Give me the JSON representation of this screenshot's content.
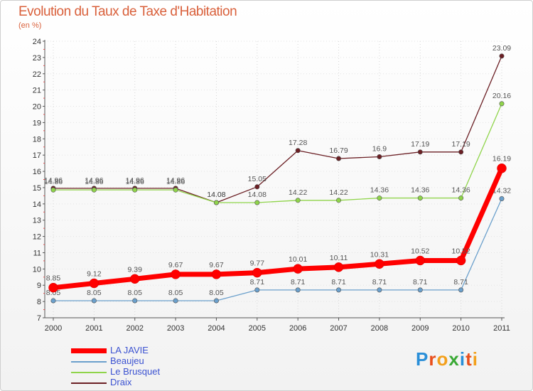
{
  "title": "Evolution du Taux de Taxe d'Habitation",
  "subtitle": "(en %)",
  "logo": {
    "text": "Proxiti",
    "letters": [
      "P",
      "r",
      "o",
      "x",
      "i",
      "t",
      "i"
    ],
    "colors": [
      "#2a8fd8",
      "#e94e1b",
      "#f3a01b",
      "#3aa935",
      "#2a8fd8",
      "#e94e1b",
      "#f3a01b"
    ]
  },
  "chart_data": {
    "type": "line",
    "title": "Evolution du Taux de Taxe d'Habitation",
    "ylabel": "(en %)",
    "x": [
      "2000",
      "2001",
      "2002",
      "2003",
      "2004",
      "2005",
      "2006",
      "2007",
      "2008",
      "2009",
      "2010",
      "2011"
    ],
    "ylim": [
      7,
      24
    ],
    "yticks": [
      7,
      8,
      9,
      10,
      11,
      12,
      13,
      14,
      15,
      16,
      17,
      18,
      19,
      20,
      21,
      22,
      23,
      24
    ],
    "grid": true,
    "legend_position": "bottom-left",
    "series": [
      {
        "name": "Draix",
        "color": "#6b1f24",
        "values": [
          14.96,
          14.96,
          14.96,
          14.96,
          14.08,
          15.05,
          17.28,
          16.79,
          16.9,
          17.19,
          17.19,
          23.09
        ],
        "labels": [
          "14.96",
          "14.96",
          "14.96",
          "14.96",
          "14.08",
          "15.05",
          "17.28",
          "16.79",
          "16.9",
          "17.19",
          "17.19",
          "23.09"
        ]
      },
      {
        "name": "Le Brusquet",
        "color": "#8fd44a",
        "values": [
          14.86,
          14.86,
          14.86,
          14.86,
          14.08,
          14.08,
          14.22,
          14.22,
          14.36,
          14.36,
          14.36,
          20.16
        ],
        "labels": [
          "14.86",
          "14.86",
          "14.86",
          "14.86",
          "14.08",
          "14.08",
          "14.22",
          "14.22",
          "14.36",
          "14.36",
          "14.36",
          "20.16"
        ]
      },
      {
        "name": "Beaujeu",
        "color": "#6ba0cc",
        "values": [
          8.05,
          8.05,
          8.05,
          8.05,
          8.05,
          8.71,
          8.71,
          8.71,
          8.71,
          8.71,
          8.71,
          14.32
        ],
        "labels": [
          "8.05",
          "8.05",
          "8.05",
          "8.05",
          "8.05",
          "8.71",
          "8.71",
          "8.71",
          "8.71",
          "8.71",
          "8.71",
          "14.32"
        ]
      },
      {
        "name": "LA JAVIE",
        "color": "#ff0000",
        "values": [
          8.85,
          9.12,
          9.39,
          9.67,
          9.67,
          9.77,
          10.01,
          10.11,
          10.31,
          10.52,
          10.52,
          16.19
        ],
        "labels": [
          "8.85",
          "9.12",
          "9.39",
          "9.67",
          "9.67",
          "9.77",
          "10.01",
          "10.11",
          "10.31",
          "10.52",
          "10.52",
          "16.19"
        ]
      }
    ]
  },
  "legend": [
    {
      "name": "LA JAVIE",
      "color": "#ff0000"
    },
    {
      "name": "Beaujeu",
      "color": "#6ba0cc"
    },
    {
      "name": "Le Brusquet",
      "color": "#8fd44a"
    },
    {
      "name": "Draix",
      "color": "#6b1f24"
    }
  ]
}
